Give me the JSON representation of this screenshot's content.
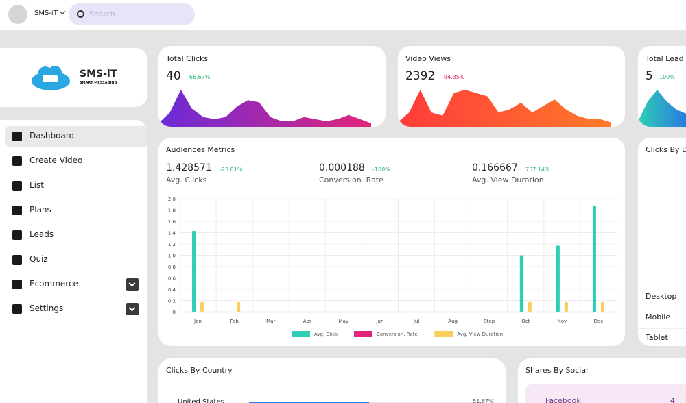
{
  "topbar": {
    "user": "SMS-iT",
    "search_placeholder": "Search"
  },
  "sidebar": {
    "logo": "SMS-iT",
    "tagline": "SMART MESSAGING",
    "menu": [
      "Dashboard",
      "Create Video",
      "List",
      "Plans",
      "Leads",
      "Quiz",
      "Ecommerce",
      "Settings"
    ]
  },
  "cards": [
    {
      "title": "Total Clicks",
      "value": "40",
      "change": "-66.67%",
      "spark": [
        5,
        30,
        85,
        40,
        20,
        15,
        20,
        45,
        60,
        55,
        20,
        10,
        10,
        20,
        15,
        10,
        15,
        25,
        15,
        5
      ]
    },
    {
      "title": "Video Views",
      "value": "2392",
      "change": "-84.85%",
      "spark": [
        5,
        20,
        55,
        20,
        15,
        50,
        55,
        50,
        45,
        20,
        25,
        35,
        20,
        30,
        40,
        25,
        15,
        10,
        10,
        5
      ]
    },
    {
      "title": "Total Lead",
      "value": "5",
      "change": "100%",
      "spark": [
        10,
        60,
        90,
        60,
        40,
        30
      ]
    }
  ],
  "audience": {
    "title": "Audiences Metrics",
    "metrics": [
      {
        "value": "1.428571",
        "change": "-23.81%",
        "label": "Avg. Clicks"
      },
      {
        "value": "0.000188",
        "change": "-100%",
        "label": "Conversion. Rate"
      },
      {
        "value": "0.166667",
        "change": "757.14%",
        "label": "Avg. View Duration"
      }
    ]
  },
  "chart_data": {
    "type": "bar",
    "categories": [
      "Jan",
      "Feb",
      "Mar",
      "Apr",
      "May",
      "Jun",
      "Jul",
      "Aug",
      "Step",
      "Oct",
      "Nov",
      "Dec"
    ],
    "series": [
      {
        "name": "Avg. Click",
        "color": "#2ecfb4",
        "values": [
          1.43,
          0,
          0,
          0,
          0,
          0,
          0,
          0,
          0,
          1.0,
          1.17,
          1.87
        ]
      },
      {
        "name": "Conversion. Rate",
        "color": "#e0267a",
        "values": [
          0,
          0,
          0,
          0,
          0,
          0,
          0,
          0,
          0,
          0,
          0,
          0
        ]
      },
      {
        "name": "Avg. View Duration",
        "color": "#f7cf5a",
        "values": [
          0.17,
          0.17,
          0,
          0,
          0,
          0,
          0,
          0,
          0,
          0.17,
          0.17,
          0.17
        ]
      }
    ],
    "ylim": [
      0,
      2
    ],
    "yticks": [
      0,
      0.2,
      0.4,
      0.6,
      0.8,
      {
        "value": 1,
        "label": "1.0"
      },
      1.2,
      1.4,
      1.6,
      1.8,
      {
        "value": 2,
        "label": "2.0"
      }
    ],
    "grid": true
  },
  "device": {
    "title": "Clicks By D",
    "rows": [
      "Desktop",
      "Mobile",
      "Tablet"
    ]
  },
  "country": {
    "title": "Clicks By Country",
    "rows": [
      {
        "name": "United States",
        "value": 51.67,
        "label": "51.67%"
      }
    ]
  },
  "social": {
    "title": "Shares By Social",
    "rows": [
      {
        "name": "Facebook",
        "count": "4"
      }
    ]
  }
}
